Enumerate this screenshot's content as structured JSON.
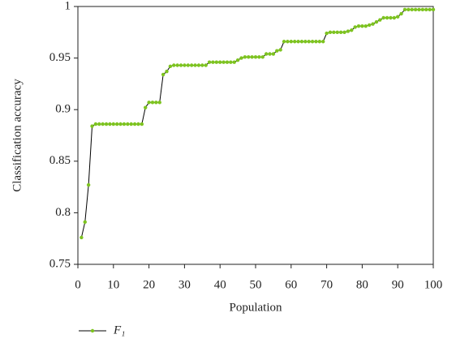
{
  "chart_data": {
    "type": "line",
    "xlabel": "Population",
    "ylabel": "Classification accuracy",
    "x": [
      1,
      2,
      3,
      4,
      5,
      6,
      7,
      8,
      9,
      10,
      11,
      12,
      13,
      14,
      15,
      16,
      17,
      18,
      19,
      20,
      21,
      22,
      23,
      24,
      25,
      26,
      27,
      28,
      29,
      30,
      31,
      32,
      33,
      34,
      35,
      36,
      37,
      38,
      39,
      40,
      41,
      42,
      43,
      44,
      45,
      46,
      47,
      48,
      49,
      50,
      51,
      52,
      53,
      54,
      55,
      56,
      57,
      58,
      59,
      60,
      61,
      62,
      63,
      64,
      65,
      66,
      67,
      68,
      69,
      70,
      71,
      72,
      73,
      74,
      75,
      76,
      77,
      78,
      79,
      80,
      81,
      82,
      83,
      84,
      85,
      86,
      87,
      88,
      89,
      90,
      91,
      92,
      93,
      94,
      95,
      96,
      97,
      98,
      99,
      100
    ],
    "series": [
      {
        "name": "F₁",
        "color": "#7dc41f",
        "line_color": "#000000",
        "values": [
          0.776,
          0.791,
          0.827,
          0.884,
          0.886,
          0.886,
          0.886,
          0.886,
          0.886,
          0.886,
          0.886,
          0.886,
          0.886,
          0.886,
          0.886,
          0.886,
          0.886,
          0.886,
          0.902,
          0.907,
          0.907,
          0.907,
          0.907,
          0.934,
          0.937,
          0.942,
          0.943,
          0.943,
          0.943,
          0.943,
          0.943,
          0.943,
          0.943,
          0.943,
          0.943,
          0.943,
          0.946,
          0.946,
          0.946,
          0.946,
          0.946,
          0.946,
          0.946,
          0.946,
          0.948,
          0.95,
          0.951,
          0.951,
          0.951,
          0.951,
          0.951,
          0.951,
          0.954,
          0.954,
          0.954,
          0.957,
          0.958,
          0.966,
          0.966,
          0.966,
          0.966,
          0.966,
          0.966,
          0.966,
          0.966,
          0.966,
          0.966,
          0.966,
          0.966,
          0.974,
          0.975,
          0.975,
          0.975,
          0.975,
          0.975,
          0.976,
          0.977,
          0.98,
          0.981,
          0.981,
          0.981,
          0.982,
          0.983,
          0.985,
          0.987,
          0.989,
          0.989,
          0.989,
          0.989,
          0.99,
          0.993,
          0.997,
          0.997,
          0.997,
          0.997,
          0.997,
          0.997,
          0.997,
          0.997,
          0.997
        ]
      }
    ],
    "xlim": [
      0,
      100
    ],
    "xticks": [
      0,
      10,
      20,
      30,
      40,
      50,
      60,
      70,
      80,
      90,
      100
    ],
    "ylim": [
      0.75,
      1
    ],
    "yticks": [
      0.75,
      0.8,
      0.85,
      0.9,
      0.95,
      1
    ],
    "grid": false,
    "legend": "bottom-left"
  }
}
